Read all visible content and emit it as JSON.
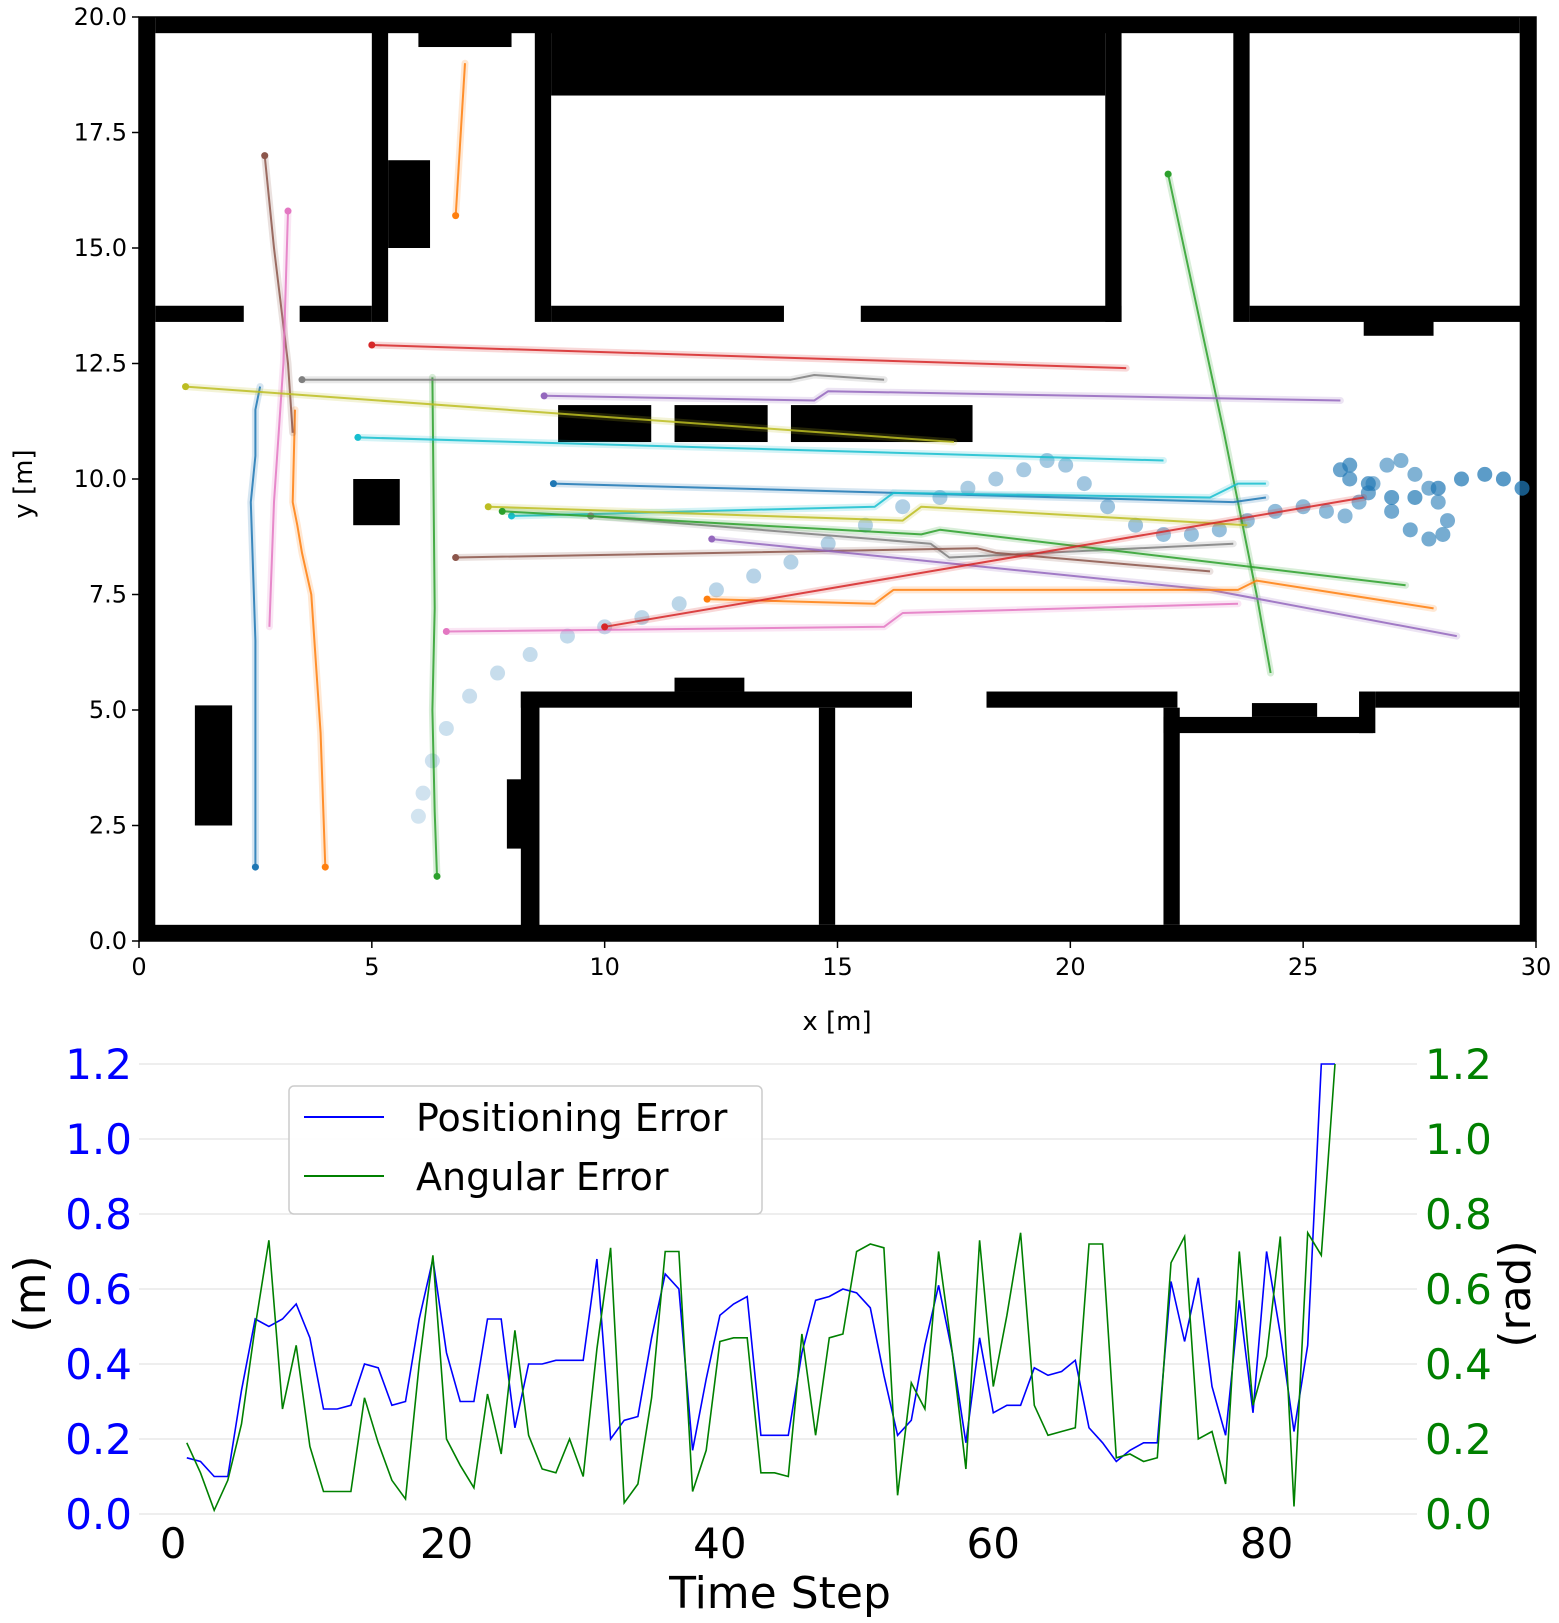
{
  "chart_data": [
    {
      "type": "scatter",
      "title": "",
      "xlabel": "x [m]",
      "ylabel": "y [m]",
      "xlim": [
        0,
        30
      ],
      "ylim": [
        0,
        20
      ],
      "x_ticks": [
        "0",
        "5",
        "10",
        "15",
        "20",
        "25",
        "30"
      ],
      "y_ticks": [
        "0.0",
        "2.5",
        "5.0",
        "7.5",
        "10.0",
        "12.5",
        "15.0",
        "17.5",
        "20.0"
      ],
      "grid": false,
      "legend": "none",
      "obstacles": [
        [
          0,
          0,
          0.35,
          20
        ],
        [
          0,
          0,
          30,
          0.35
        ],
        [
          29.65,
          0,
          0.35,
          20
        ],
        [
          0.35,
          19.65,
          29.3,
          0.35
        ],
        [
          0.35,
          13.4,
          1.9,
          0.35
        ],
        [
          3.45,
          13.4,
          1.55,
          0.35
        ],
        [
          5.0,
          13.4,
          0.35,
          6.6
        ],
        [
          5.35,
          15.0,
          0.9,
          1.9
        ],
        [
          6.0,
          19.35,
          2.0,
          0.65
        ],
        [
          8.5,
          13.4,
          0.35,
          6.6
        ],
        [
          8.85,
          18.3,
          11.9,
          1.7
        ],
        [
          20.75,
          13.4,
          0.35,
          6.6
        ],
        [
          8.85,
          13.4,
          5.0,
          0.35
        ],
        [
          15.5,
          13.4,
          5.6,
          0.35
        ],
        [
          23.5,
          13.4,
          0.35,
          6.6
        ],
        [
          23.85,
          13.4,
          6.0,
          0.35
        ],
        [
          26.3,
          13.1,
          1.5,
          0.4
        ],
        [
          1.2,
          2.5,
          0.8,
          2.6
        ],
        [
          4.6,
          9.0,
          1.0,
          1.0
        ],
        [
          9.0,
          10.8,
          2.0,
          0.8
        ],
        [
          11.5,
          10.8,
          2.0,
          0.8
        ],
        [
          14.0,
          10.8,
          3.9,
          0.8
        ],
        [
          8.2,
          0,
          0.4,
          5.4
        ],
        [
          7.9,
          2.0,
          0.35,
          1.5
        ],
        [
          8.2,
          5.05,
          8.4,
          0.35
        ],
        [
          11.5,
          5.4,
          1.5,
          0.3
        ],
        [
          14.6,
          0.35,
          0.35,
          4.7
        ],
        [
          18.2,
          5.05,
          4.1,
          0.35
        ],
        [
          22.0,
          0.35,
          0.35,
          4.7
        ],
        [
          22.0,
          4.5,
          4.5,
          0.35
        ],
        [
          23.9,
          4.85,
          1.4,
          0.3
        ],
        [
          26.2,
          4.5,
          0.35,
          0.9
        ],
        [
          26.55,
          5.05,
          3.1,
          0.35
        ]
      ],
      "dotted_path": {
        "x": [
          6.0,
          6.1,
          6.3,
          6.6,
          7.1,
          7.7,
          8.4,
          9.2,
          10.0,
          10.8,
          11.6,
          12.4,
          13.2,
          14.0,
          14.8,
          15.6,
          16.4,
          17.2,
          17.8,
          18.4,
          19.0,
          19.5,
          19.9,
          20.3,
          20.8,
          21.4,
          22.0,
          22.6,
          23.2,
          23.8,
          24.4,
          25.0,
          25.5,
          25.9,
          26.2,
          26.5,
          26.8,
          27.1,
          27.4,
          27.7,
          27.9,
          28.1,
          28.0,
          27.7,
          27.3,
          26.9,
          26.4,
          26.0,
          25.8,
          26.0,
          26.4,
          26.9,
          27.4,
          27.9,
          28.4,
          28.9,
          29.3,
          29.7
        ]
      },
      "dotted_path_y": [
        2.7,
        3.2,
        3.9,
        4.6,
        5.3,
        5.8,
        6.2,
        6.6,
        6.8,
        7.0,
        7.3,
        7.6,
        7.9,
        8.2,
        8.6,
        9.0,
        9.4,
        9.6,
        9.8,
        10.0,
        10.2,
        10.4,
        10.3,
        9.9,
        9.4,
        9.0,
        8.8,
        8.8,
        8.9,
        9.1,
        9.3,
        9.4,
        9.3,
        9.2,
        9.5,
        9.9,
        10.3,
        10.4,
        10.1,
        9.8,
        9.5,
        9.1,
        8.8,
        8.7,
        8.9,
        9.3,
        9.7,
        10.0,
        10.2,
        10.3,
        9.9,
        9.6,
        9.6,
        9.8,
        10.0,
        10.1,
        10.0,
        9.8
      ],
      "trajectories": [
        {
          "color": "#1f77b4",
          "x": [
            2.5,
            2.5,
            2.5,
            2.45,
            2.4,
            2.5,
            2.5,
            2.6
          ],
          "y": [
            1.6,
            4.0,
            6.5,
            8.0,
            9.5,
            10.5,
            11.5,
            12.0
          ]
        },
        {
          "color": "#ff7f0e",
          "x": [
            4.0,
            3.9,
            3.7,
            3.5,
            3.4,
            3.3,
            3.35
          ],
          "y": [
            1.6,
            4.5,
            7.5,
            8.4,
            9.0,
            9.5,
            11.5
          ]
        },
        {
          "color": "#ff7f0e",
          "x": [
            6.8,
            7.0
          ],
          "y": [
            15.7,
            19.0
          ]
        },
        {
          "color": "#2ca02c",
          "x": [
            6.4,
            6.35,
            6.3,
            6.35,
            6.3
          ],
          "y": [
            1.4,
            2.8,
            5.0,
            7.2,
            12.2
          ]
        },
        {
          "color": "#2ca02c",
          "x": [
            22.1,
            23.3,
            24.0,
            24.3
          ],
          "y": [
            16.6,
            11.0,
            7.5,
            5.8
          ]
        },
        {
          "color": "#8c564b",
          "x": [
            2.7,
            2.9,
            3.2,
            3.3
          ],
          "y": [
            17.0,
            15.0,
            12.5,
            11.0
          ]
        },
        {
          "color": "#e377c2",
          "x": [
            3.2,
            3.1,
            2.9,
            2.8
          ],
          "y": [
            15.8,
            12.5,
            9.5,
            6.8
          ]
        },
        {
          "color": "#d62728",
          "x": [
            5.0,
            21.2
          ],
          "y": [
            12.9,
            12.4
          ]
        },
        {
          "color": "#7f7f7f",
          "x": [
            3.5,
            14.0,
            14.5,
            16.0
          ],
          "y": [
            12.15,
            12.15,
            12.25,
            12.15
          ]
        },
        {
          "color": "#9467bd",
          "x": [
            8.7,
            14.5,
            14.8,
            25.8
          ],
          "y": [
            11.8,
            11.7,
            11.9,
            11.7
          ]
        },
        {
          "color": "#bcbd22",
          "x": [
            1.0,
            17.5
          ],
          "y": [
            12.0,
            10.8
          ]
        },
        {
          "color": "#17becf",
          "x": [
            4.7,
            22.0
          ],
          "y": [
            10.9,
            10.4
          ]
        },
        {
          "color": "#1f77b4",
          "x": [
            8.9,
            23.5,
            24.2
          ],
          "y": [
            9.9,
            9.5,
            9.6
          ]
        },
        {
          "color": "#17becf",
          "x": [
            8.0,
            15.8,
            16.2,
            23.0,
            23.6,
            24.2
          ],
          "y": [
            9.2,
            9.4,
            9.7,
            9.6,
            9.9,
            9.9
          ]
        },
        {
          "color": "#bcbd22",
          "x": [
            7.5,
            16.4,
            16.8,
            23.8
          ],
          "y": [
            9.4,
            9.1,
            9.4,
            9.0
          ]
        },
        {
          "color": "#7f7f7f",
          "x": [
            9.7,
            17.0,
            17.4,
            23.5
          ],
          "y": [
            9.2,
            8.6,
            8.3,
            8.6
          ]
        },
        {
          "color": "#2ca02c",
          "x": [
            7.8,
            16.8,
            17.2,
            27.2
          ],
          "y": [
            9.3,
            8.8,
            8.9,
            7.7
          ]
        },
        {
          "color": "#8c564b",
          "x": [
            6.8,
            18.0,
            18.4,
            23.0
          ],
          "y": [
            8.3,
            8.5,
            8.4,
            8.0
          ]
        },
        {
          "color": "#9467bd",
          "x": [
            12.3,
            23.0,
            28.3
          ],
          "y": [
            8.7,
            7.6,
            6.6
          ]
        },
        {
          "color": "#ff7f0e",
          "x": [
            12.2,
            15.8,
            16.2,
            23.6,
            24.0,
            27.8
          ],
          "y": [
            7.4,
            7.3,
            7.6,
            7.6,
            7.8,
            7.2
          ]
        },
        {
          "color": "#e377c2",
          "x": [
            6.6,
            16.0,
            16.4,
            23.6
          ],
          "y": [
            6.7,
            6.8,
            7.1,
            7.3
          ]
        },
        {
          "color": "#d62728",
          "x": [
            10.0,
            26.3
          ],
          "y": [
            6.8,
            9.6
          ]
        }
      ]
    },
    {
      "type": "line",
      "title": "",
      "xlabel": "Time Step",
      "ylabel": "(m)",
      "y2label": "(rad)",
      "xlim": [
        -2.5,
        91
      ],
      "ylim": [
        0.0,
        1.2
      ],
      "y2lim": [
        0.0,
        1.2
      ],
      "x_ticks": [
        "0",
        "20",
        "40",
        "60",
        "80"
      ],
      "y_ticks": [
        "0.0",
        "0.2",
        "0.4",
        "0.6",
        "0.8",
        "1.0",
        "1.2"
      ],
      "grid": true,
      "legend": "upper-left",
      "x": [
        1,
        2,
        3,
        4,
        5,
        6,
        7,
        8,
        9,
        10,
        11,
        12,
        13,
        14,
        15,
        16,
        17,
        18,
        19,
        20,
        21,
        22,
        23,
        24,
        25,
        26,
        27,
        28,
        29,
        30,
        31,
        32,
        33,
        34,
        35,
        36,
        37,
        38,
        39,
        40,
        41,
        42,
        43,
        44,
        45,
        46,
        47,
        48,
        49,
        50,
        51,
        52,
        53,
        54,
        55,
        56,
        57,
        58,
        59,
        60,
        61,
        62,
        63,
        64,
        65,
        66,
        67,
        68,
        69,
        70,
        71,
        72,
        73,
        74,
        75,
        76,
        77,
        78,
        79,
        80,
        81,
        82,
        83,
        84,
        85
      ],
      "series": [
        {
          "name": "Positioning Error",
          "color": "#0000ff",
          "axis": "left",
          "values": [
            0.15,
            0.14,
            0.1,
            0.1,
            0.33,
            0.52,
            0.5,
            0.52,
            0.56,
            0.47,
            0.28,
            0.28,
            0.29,
            0.4,
            0.39,
            0.29,
            0.3,
            0.52,
            0.68,
            0.43,
            0.3,
            0.3,
            0.52,
            0.52,
            0.23,
            0.4,
            0.4,
            0.41,
            0.41,
            0.41,
            0.68,
            0.2,
            0.25,
            0.26,
            0.47,
            0.64,
            0.6,
            0.17,
            0.36,
            0.53,
            0.56,
            0.58,
            0.21,
            0.21,
            0.21,
            0.43,
            0.57,
            0.58,
            0.6,
            0.59,
            0.55,
            0.37,
            0.21,
            0.25,
            0.45,
            0.61,
            0.43,
            0.19,
            0.47,
            0.27,
            0.29,
            0.29,
            0.39,
            0.37,
            0.38,
            0.41,
            0.23,
            0.19,
            0.14,
            0.17,
            0.19,
            0.19,
            0.62,
            0.46,
            0.63,
            0.34,
            0.21,
            0.57,
            0.27,
            0.7,
            0.48,
            0.22,
            0.45,
            1.2,
            1.2
          ]
        },
        {
          "name": "Angular Error",
          "color": "#008000",
          "axis": "right",
          "values": [
            0.19,
            0.11,
            0.01,
            0.09,
            0.24,
            0.5,
            0.73,
            0.28,
            0.45,
            0.18,
            0.06,
            0.06,
            0.06,
            0.31,
            0.19,
            0.09,
            0.04,
            0.4,
            0.69,
            0.2,
            0.13,
            0.07,
            0.32,
            0.16,
            0.49,
            0.21,
            0.12,
            0.11,
            0.2,
            0.1,
            0.44,
            0.71,
            0.03,
            0.08,
            0.31,
            0.7,
            0.7,
            0.06,
            0.17,
            0.46,
            0.47,
            0.47,
            0.11,
            0.11,
            0.1,
            0.48,
            0.21,
            0.47,
            0.48,
            0.7,
            0.72,
            0.71,
            0.05,
            0.35,
            0.28,
            0.7,
            0.43,
            0.12,
            0.73,
            0.34,
            0.53,
            0.75,
            0.29,
            0.21,
            0.22,
            0.23,
            0.72,
            0.72,
            0.15,
            0.16,
            0.14,
            0.15,
            0.67,
            0.74,
            0.2,
            0.22,
            0.08,
            0.7,
            0.29,
            0.42,
            0.74,
            0.02,
            0.75,
            0.69,
            1.2
          ]
        }
      ]
    }
  ]
}
